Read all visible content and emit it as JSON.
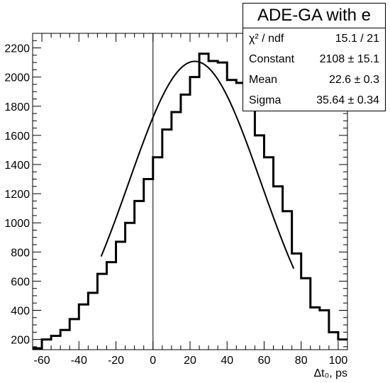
{
  "chart_data": {
    "type": "bar",
    "style": "step-histogram-with-gaussian-fit",
    "xlabel": "Δt₀, ps",
    "xlim": [
      -65,
      105
    ],
    "ylim": [
      130,
      2300
    ],
    "x_ticks": [
      -60,
      -40,
      -20,
      0,
      20,
      40,
      60,
      80,
      100
    ],
    "y_ticks": [
      200,
      400,
      600,
      800,
      1000,
      1200,
      1400,
      1600,
      1800,
      2000,
      2200
    ],
    "bin_edges": [
      -65,
      -60,
      -55,
      -50,
      -45,
      -40,
      -35,
      -30,
      -25,
      -20,
      -15,
      -10,
      -5,
      0,
      5,
      10,
      15,
      20,
      25,
      30,
      35,
      40,
      45,
      50,
      55,
      60,
      65,
      70,
      75,
      80,
      85,
      90,
      95,
      100,
      105
    ],
    "values": [
      140,
      200,
      225,
      265,
      340,
      440,
      520,
      650,
      730,
      870,
      1000,
      1150,
      1300,
      1450,
      1640,
      1760,
      1880,
      2000,
      2160,
      2110,
      2100,
      1980,
      1960,
      1780,
      1600,
      1450,
      1250,
      1080,
      790,
      620,
      420,
      400,
      250,
      200
    ],
    "fit": {
      "function": "gaus",
      "constant": 2108,
      "mean": 22.6,
      "sigma": 35.64,
      "x_range": [
        -28,
        76
      ]
    },
    "zero_line": 0
  },
  "stats_box": {
    "title": "ADE-GA with e",
    "rows": [
      {
        "label": "χ² / ndf",
        "value": "15.1 / 21"
      },
      {
        "label": "Constant",
        "value": "2108 ± 15.1"
      },
      {
        "label": "Mean",
        "value": "22.6 ± 0.3"
      },
      {
        "label": "Sigma",
        "value": "35.64 ± 0.34"
      }
    ]
  }
}
